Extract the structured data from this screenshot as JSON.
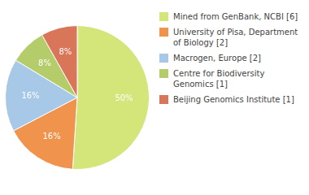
{
  "chart_data": {
    "type": "pie",
    "categories": [
      "Mined from GenBank, NCBI [6]",
      "University of Pisa, Department\nof Biology [2]",
      "Macrogen, Europe [2]",
      "Centre for Biodiversity\nGenomics [1]",
      "Beijing Genomics Institute [1]"
    ],
    "values": [
      50,
      16,
      16,
      8,
      8
    ],
    "value_labels": [
      "50%",
      "16%",
      "16%",
      "8%",
      "8%"
    ],
    "colors": [
      "#d4e57a",
      "#f0944d",
      "#a8c8e8",
      "#b5cc6a",
      "#d9765a"
    ],
    "data_labels": true,
    "legend": "right"
  }
}
